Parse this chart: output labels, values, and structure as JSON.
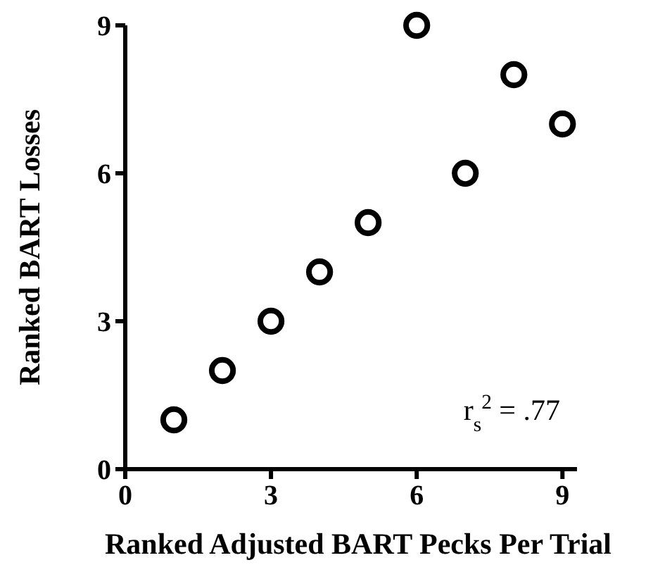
{
  "chart_data": {
    "type": "scatter",
    "xlabel": "Ranked Adjusted BART Pecks Per Trial",
    "ylabel": "Ranked BART Losses",
    "x": [
      1,
      2,
      3,
      4,
      5,
      6,
      7,
      8,
      9
    ],
    "values": [
      1,
      2,
      3,
      4,
      5,
      9,
      6,
      8,
      7
    ],
    "color": "#000000",
    "marker": "circle",
    "xlim": [
      0,
      9.3
    ],
    "ylim": [
      0,
      9
    ],
    "xticks": [
      0,
      3,
      6,
      9
    ],
    "yticks": [
      0,
      3,
      6,
      9
    ],
    "grid": false,
    "annotations": [
      "r$_{s}$$^{2}$ = .77"
    ]
  }
}
